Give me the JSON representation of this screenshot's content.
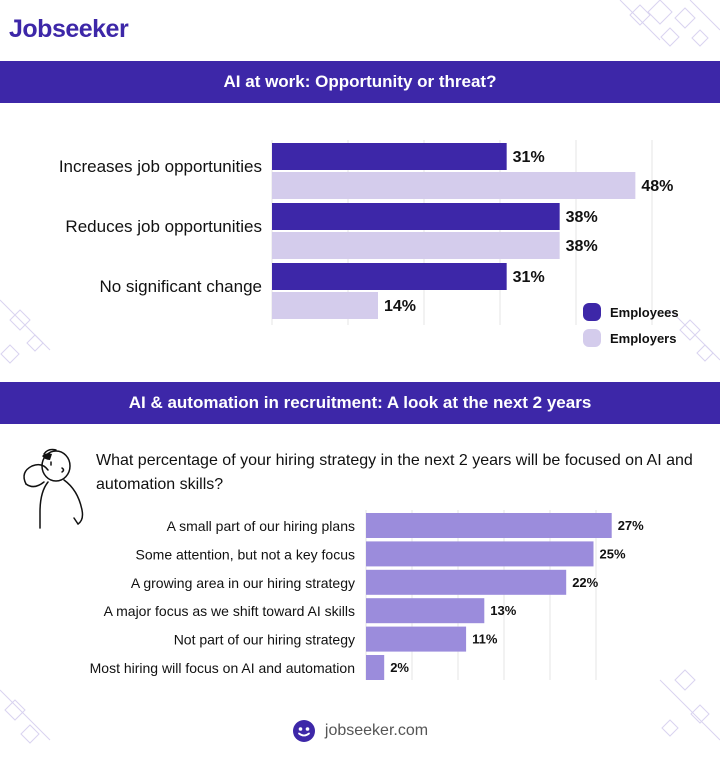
{
  "brand": {
    "logo_text": "Jobseeker",
    "footer_url": "jobseeker.com"
  },
  "colors": {
    "brand": "#3d27a8",
    "employees": "#3d27a8",
    "employers": "#d4ccec",
    "hiring_bar": "#9b8cdc"
  },
  "sections": {
    "section1_title": "AI at work: Opportunity or threat?",
    "section2_title": "AI & automation in recruitment: A look at the next 2 years",
    "question": "What percentage of your hiring strategy in the next 2 years will be focused on AI and automation skills?"
  },
  "chart_data": [
    {
      "type": "bar",
      "orientation": "horizontal",
      "categories": [
        "Increases job opportunities",
        "Reduces job opportunities",
        "No significant change"
      ],
      "series": [
        {
          "name": "Employees",
          "values": [
            31,
            38,
            31
          ]
        },
        {
          "name": "Employers",
          "values": [
            48,
            38,
            14
          ]
        }
      ],
      "value_labels": [
        [
          "31%",
          "38%",
          "31%"
        ],
        [
          "48%",
          "38%",
          "14%"
        ]
      ],
      "unit": "%",
      "xlim": [
        0,
        50
      ],
      "grid": true,
      "legend": "bottom-right"
    },
    {
      "type": "bar",
      "orientation": "horizontal",
      "categories": [
        "A small part of our hiring plans",
        "Some attention, but not a key focus",
        "A growing area in our hiring strategy",
        "A major focus as we shift toward AI skills",
        "Not part of our hiring strategy",
        "Most hiring will focus on AI and automation"
      ],
      "values": [
        27,
        25,
        22,
        13,
        11,
        2
      ],
      "value_labels": [
        "27%",
        "25%",
        "22%",
        "13%",
        "11%",
        "2%"
      ],
      "unit": "%",
      "xlim": [
        0,
        30
      ],
      "grid": true
    }
  ]
}
